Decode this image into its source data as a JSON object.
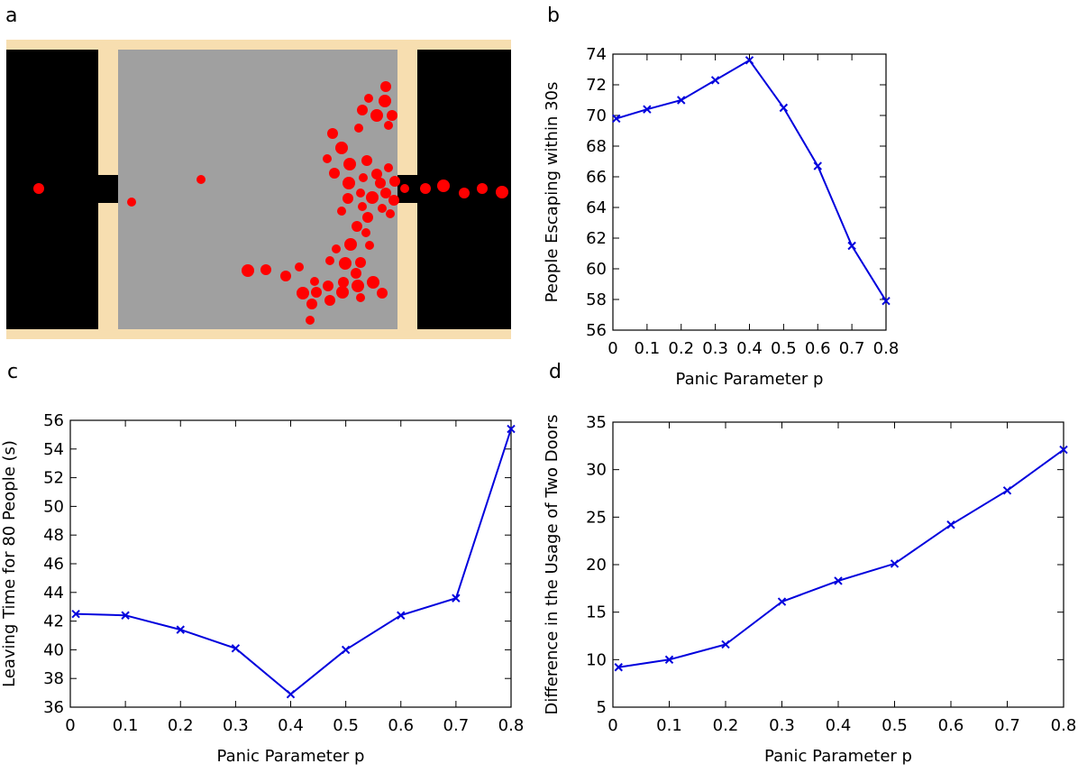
{
  "chart_data": [
    {
      "panel": "a",
      "type": "scatter",
      "title": "",
      "xlabel": "",
      "ylabel": "",
      "colors": {
        "wall": "#f7deb0",
        "room": "#a0a0a0",
        "outside": "#000000",
        "person": "#ff0000"
      },
      "people": [
        {
          "x": 43,
          "y": 209,
          "size": 6
        },
        {
          "x": 146,
          "y": 224,
          "size": 5
        },
        {
          "x": 223,
          "y": 199,
          "size": 5
        },
        {
          "x": 428,
          "y": 96,
          "size": 6
        },
        {
          "x": 409,
          "y": 109,
          "size": 5
        },
        {
          "x": 427,
          "y": 112,
          "size": 7
        },
        {
          "x": 402,
          "y": 122,
          "size": 6
        },
        {
          "x": 418,
          "y": 128,
          "size": 7
        },
        {
          "x": 435,
          "y": 128,
          "size": 6
        },
        {
          "x": 398,
          "y": 142,
          "size": 5
        },
        {
          "x": 431,
          "y": 139,
          "size": 5
        },
        {
          "x": 369,
          "y": 148,
          "size": 6
        },
        {
          "x": 379,
          "y": 164,
          "size": 7
        },
        {
          "x": 363,
          "y": 176,
          "size": 5
        },
        {
          "x": 388,
          "y": 182,
          "size": 7
        },
        {
          "x": 407,
          "y": 178,
          "size": 6
        },
        {
          "x": 431,
          "y": 186,
          "size": 5
        },
        {
          "x": 371,
          "y": 192,
          "size": 6
        },
        {
          "x": 418,
          "y": 193,
          "size": 6
        },
        {
          "x": 403,
          "y": 197,
          "size": 5
        },
        {
          "x": 387,
          "y": 203,
          "size": 7
        },
        {
          "x": 422,
          "y": 203,
          "size": 6
        },
        {
          "x": 438,
          "y": 201,
          "size": 6
        },
        {
          "x": 400,
          "y": 214,
          "size": 5
        },
        {
          "x": 386,
          "y": 220,
          "size": 6
        },
        {
          "x": 413,
          "y": 219,
          "size": 7
        },
        {
          "x": 428,
          "y": 214,
          "size": 6
        },
        {
          "x": 437,
          "y": 222,
          "size": 6
        },
        {
          "x": 402,
          "y": 229,
          "size": 5
        },
        {
          "x": 424,
          "y": 231,
          "size": 5
        },
        {
          "x": 379,
          "y": 234,
          "size": 5
        },
        {
          "x": 433,
          "y": 237,
          "size": 5
        },
        {
          "x": 408,
          "y": 241,
          "size": 6
        },
        {
          "x": 396,
          "y": 251,
          "size": 6
        },
        {
          "x": 406,
          "y": 258,
          "size": 5
        },
        {
          "x": 389,
          "y": 271,
          "size": 7
        },
        {
          "x": 373,
          "y": 276,
          "size": 5
        },
        {
          "x": 410,
          "y": 272,
          "size": 5
        },
        {
          "x": 383,
          "y": 292,
          "size": 7
        },
        {
          "x": 400,
          "y": 291,
          "size": 6
        },
        {
          "x": 366,
          "y": 289,
          "size": 5
        },
        {
          "x": 395,
          "y": 303,
          "size": 6
        },
        {
          "x": 275,
          "y": 300,
          "size": 7
        },
        {
          "x": 295,
          "y": 299,
          "size": 6
        },
        {
          "x": 317,
          "y": 306,
          "size": 6
        },
        {
          "x": 332,
          "y": 296,
          "size": 5
        },
        {
          "x": 349,
          "y": 312,
          "size": 5
        },
        {
          "x": 364,
          "y": 317,
          "size": 6
        },
        {
          "x": 381,
          "y": 313,
          "size": 6
        },
        {
          "x": 397,
          "y": 317,
          "size": 7
        },
        {
          "x": 414,
          "y": 313,
          "size": 7
        },
        {
          "x": 336,
          "y": 325,
          "size": 7
        },
        {
          "x": 351,
          "y": 324,
          "size": 6
        },
        {
          "x": 366,
          "y": 333,
          "size": 6
        },
        {
          "x": 380,
          "y": 324,
          "size": 7
        },
        {
          "x": 400,
          "y": 330,
          "size": 5
        },
        {
          "x": 424,
          "y": 325,
          "size": 6
        },
        {
          "x": 346,
          "y": 337,
          "size": 6
        },
        {
          "x": 344,
          "y": 355,
          "size": 5
        },
        {
          "x": 449,
          "y": 209,
          "size": 5
        },
        {
          "x": 472,
          "y": 209,
          "size": 6
        },
        {
          "x": 492,
          "y": 206,
          "size": 7
        },
        {
          "x": 515,
          "y": 214,
          "size": 6
        },
        {
          "x": 535,
          "y": 209,
          "size": 6
        },
        {
          "x": 557,
          "y": 213,
          "size": 7
        }
      ]
    },
    {
      "panel": "b",
      "type": "line",
      "title": "",
      "xlabel": "Panic Parameter p",
      "ylabel": "People Escaping within 30s",
      "xlim": [
        0,
        0.8
      ],
      "ylim": [
        56,
        74
      ],
      "xticks": [
        "0",
        "0.1",
        "0.2",
        "0.3",
        "0.4",
        "0.5",
        "0.6",
        "0.7",
        "0.8"
      ],
      "yticks": [
        "56",
        "58",
        "60",
        "62",
        "64",
        "66",
        "68",
        "70",
        "72",
        "74"
      ],
      "color": "#0000dd",
      "marker": "x",
      "x": [
        0.01,
        0.1,
        0.2,
        0.3,
        0.4,
        0.5,
        0.6,
        0.7,
        0.8
      ],
      "y": [
        69.8,
        70.4,
        71.0,
        72.3,
        73.6,
        70.5,
        66.7,
        61.5,
        57.9
      ]
    },
    {
      "panel": "c",
      "type": "line",
      "title": "",
      "xlabel": "Panic Parameter p",
      "ylabel": "Leaving Time for 80 People (s)",
      "xlim": [
        0,
        0.8
      ],
      "ylim": [
        36,
        56
      ],
      "xticks": [
        "0",
        "0.1",
        "0.2",
        "0.3",
        "0.4",
        "0.5",
        "0.6",
        "0.7",
        "0.8"
      ],
      "yticks": [
        "36",
        "38",
        "40",
        "42",
        "44",
        "46",
        "48",
        "50",
        "52",
        "54",
        "56"
      ],
      "color": "#0000dd",
      "marker": "x",
      "x": [
        0.01,
        0.1,
        0.2,
        0.3,
        0.4,
        0.5,
        0.6,
        0.7,
        0.8
      ],
      "y": [
        42.5,
        42.4,
        41.4,
        40.1,
        36.9,
        40.0,
        42.4,
        43.6,
        55.4
      ]
    },
    {
      "panel": "d",
      "type": "line",
      "title": "",
      "xlabel": "Panic Parameter p",
      "ylabel": "Difference in the Usage of Two Doors",
      "xlim": [
        0,
        0.8
      ],
      "ylim": [
        5,
        35
      ],
      "xticks": [
        "0",
        "0.1",
        "0.2",
        "0.3",
        "0.4",
        "0.5",
        "0.6",
        "0.7",
        "0.8"
      ],
      "yticks": [
        "5",
        "10",
        "15",
        "20",
        "25",
        "30",
        "35"
      ],
      "color": "#0000dd",
      "marker": "x",
      "x": [
        0.01,
        0.1,
        0.2,
        0.3,
        0.4,
        0.5,
        0.6,
        0.7,
        0.8
      ],
      "y": [
        9.2,
        10.0,
        11.6,
        16.1,
        18.3,
        20.1,
        24.2,
        27.8,
        32.1
      ]
    }
  ]
}
